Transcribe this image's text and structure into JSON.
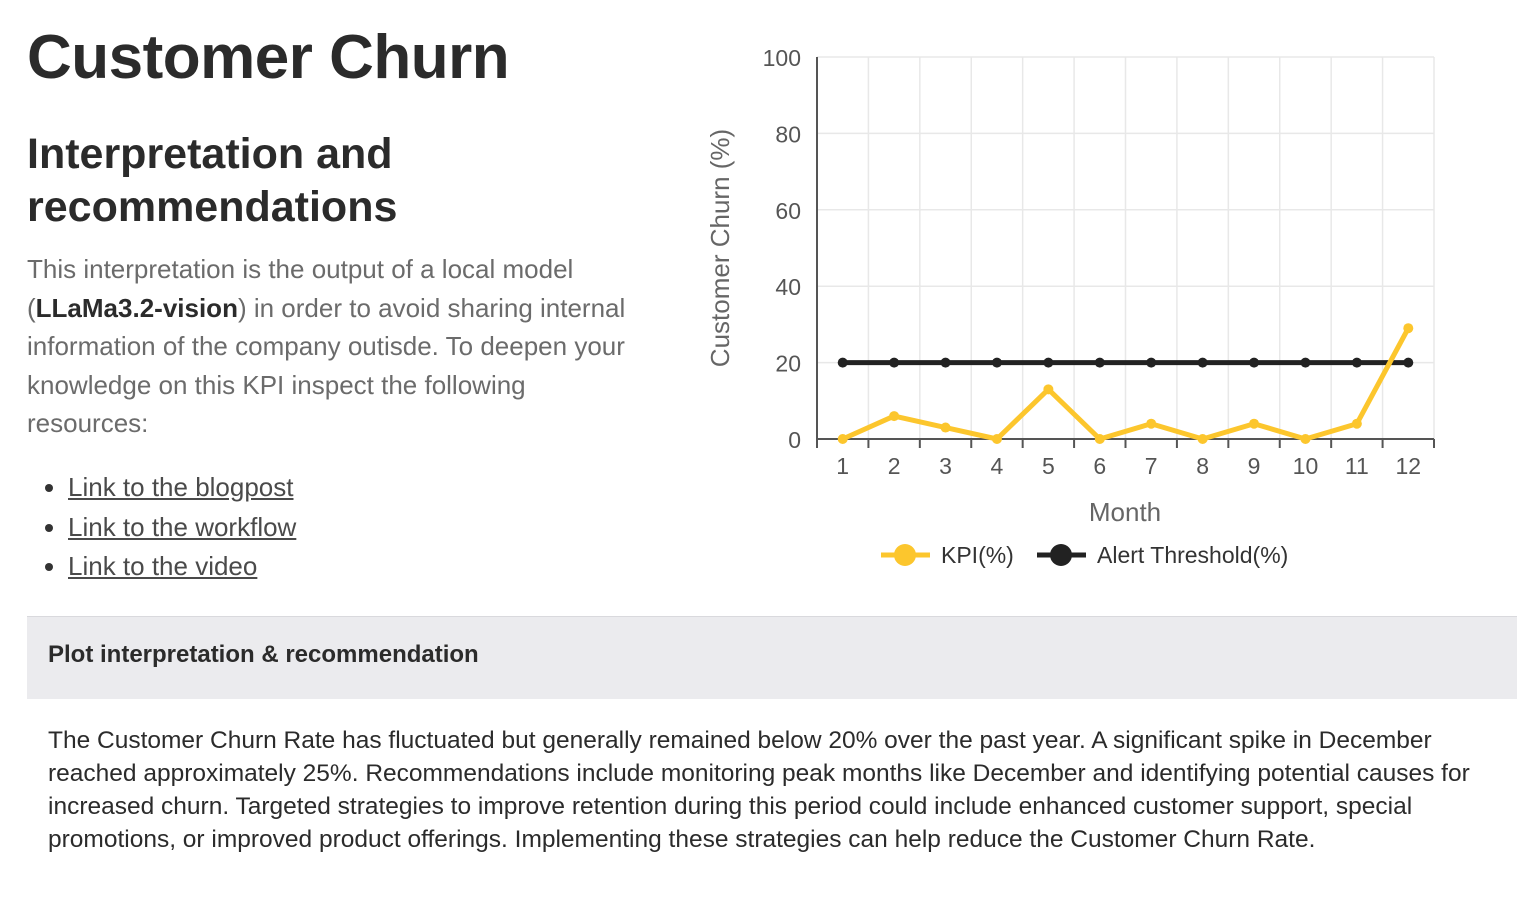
{
  "page": {
    "title": "Customer Churn"
  },
  "interpretation": {
    "heading": "Interpretation and recommendations",
    "intro_before": "This interpretation is the output of a local model (",
    "intro_model": "LLaMa3.2-vision",
    "intro_after": ") in order to avoid sharing internal information of the company outisde. To deepen your knowledge on this KPI inspect the following resources:",
    "links": [
      {
        "label": "Link to the blogpost "
      },
      {
        "label": "Link to the workflow"
      },
      {
        "label": "Link to the  video"
      }
    ]
  },
  "plot_interpretation": {
    "title": "Plot interpretation & recommendation",
    "body": "The Customer Churn Rate has fluctuated but generally remained below 20% over the past year. A significant spike in December reached approximately 25%. Recommendations include monitoring peak months like December and identifying potential causes for increased churn. Targeted strategies to improve retention during this period could include enhanced customer support, special promotions, or improved product offerings. Implementing these strategies can help reduce the Customer Churn Rate."
  },
  "colors": {
    "kpi": "#fcc62d",
    "threshold": "#222222",
    "grid": "#e8e8e8",
    "axis": "#555555"
  },
  "chart_data": {
    "type": "line",
    "title": "",
    "xlabel": "Month",
    "ylabel": "Customer Churn (%)",
    "x": [
      1,
      2,
      3,
      4,
      5,
      6,
      7,
      8,
      9,
      10,
      11,
      12
    ],
    "ylim": [
      0,
      100
    ],
    "yticks": [
      0,
      20,
      40,
      60,
      80,
      100
    ],
    "grid": true,
    "legend_position": "bottom",
    "series": [
      {
        "name": "KPI(%)",
        "color": "#fcc62d",
        "values": [
          0,
          6,
          3,
          0,
          13,
          0,
          4,
          0,
          4,
          0,
          4,
          29
        ]
      },
      {
        "name": "Alert Threshold(%)",
        "color": "#222222",
        "values": [
          20,
          20,
          20,
          20,
          20,
          20,
          20,
          20,
          20,
          20,
          20,
          20
        ]
      }
    ]
  }
}
